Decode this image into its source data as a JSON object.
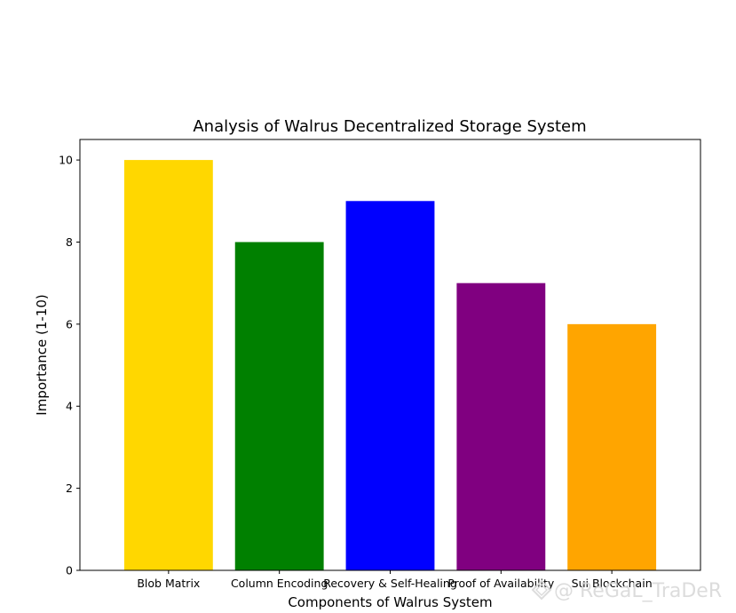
{
  "chart_data": {
    "type": "bar",
    "title": "Analysis of Walrus Decentralized Storage System",
    "xlabel": "Components of Walrus System",
    "ylabel": "Importance (1-10)",
    "categories": [
      "Blob Matrix",
      "Column Encoding",
      "Recovery & Self-Healing",
      "Proof of Availability",
      "Sui Blockchain"
    ],
    "values": [
      10,
      8,
      9,
      7,
      6
    ],
    "colors": [
      "#ffd700",
      "#008000",
      "#0000ff",
      "#800080",
      "#ffa500"
    ],
    "ylim": [
      0,
      10.5
    ],
    "yticks": [
      0,
      2,
      4,
      6,
      8,
      10
    ],
    "grid": false,
    "legend": "none"
  },
  "watermark": {
    "text": "@ ReGaL_TraDeR",
    "icon": "diamond-logo-icon"
  }
}
